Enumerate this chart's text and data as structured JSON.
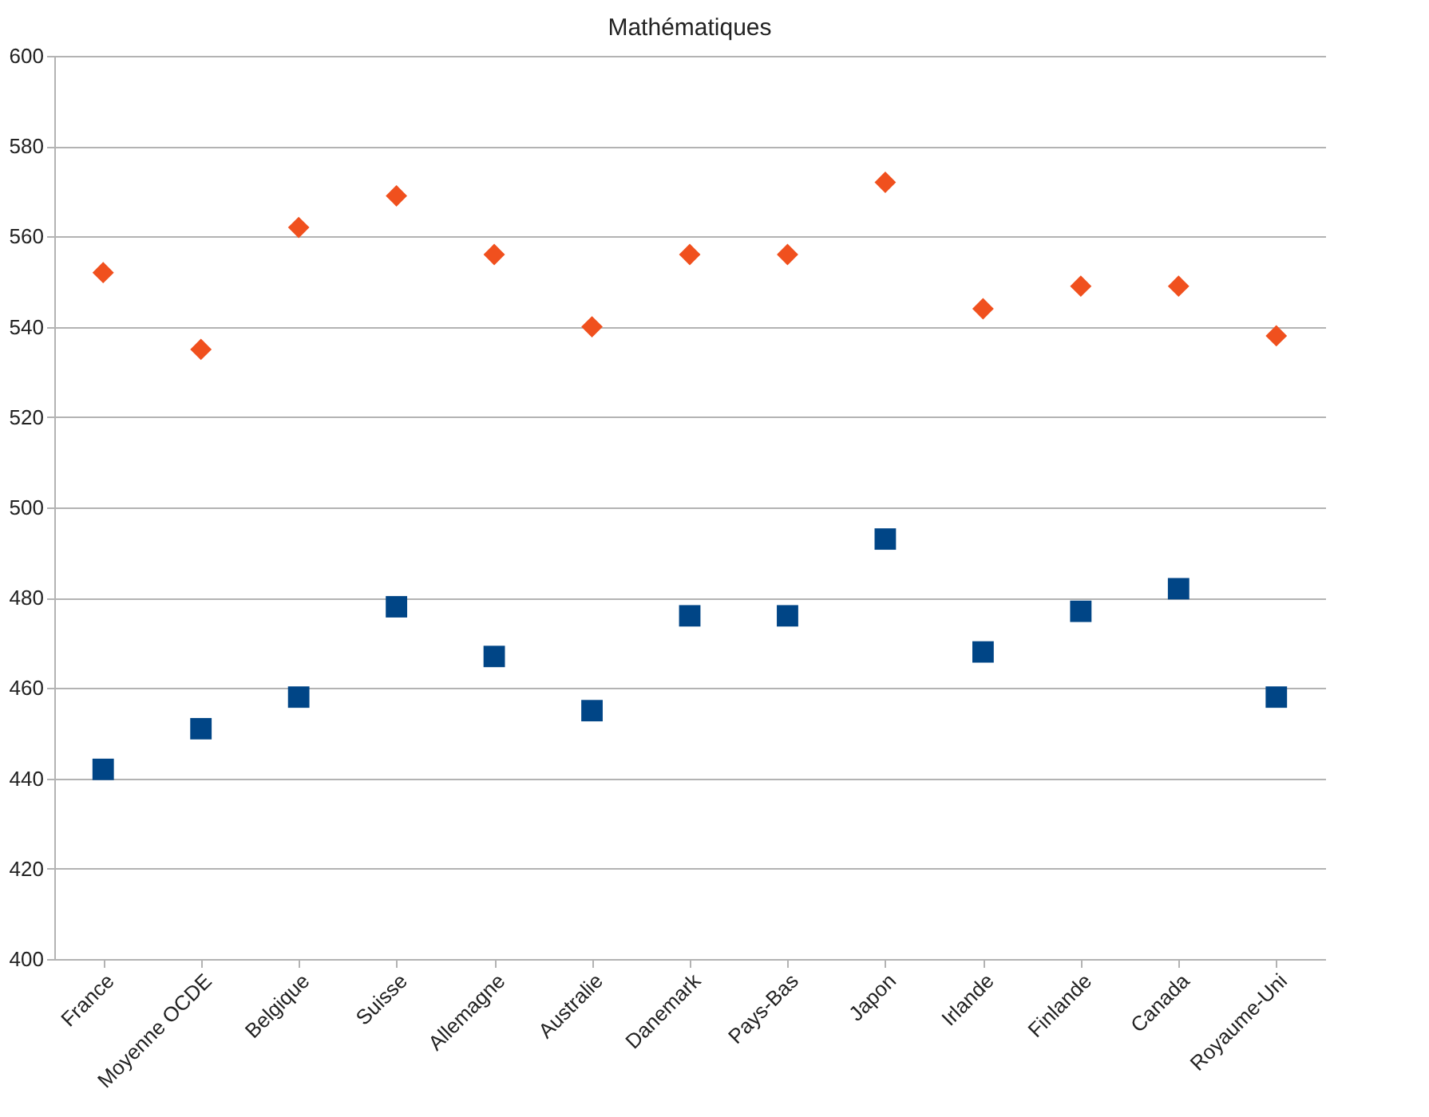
{
  "chart_data": {
    "type": "scatter",
    "title": "Mathématiques",
    "categories": [
      "France",
      "Moyenne OCDE",
      "Belgique",
      "Suisse",
      "Allemagne",
      "Australie",
      "Danemark",
      "Pays-Bas",
      "Japon",
      "Irlande",
      "Finlande",
      "Canada",
      "Royaume-Uni"
    ],
    "series": [
      {
        "color": "#f0501e",
        "marker": "diamond",
        "values": [
          552,
          535,
          562,
          569,
          556,
          540,
          556,
          556,
          572,
          544,
          549,
          549,
          538
        ]
      },
      {
        "color": "#004586",
        "marker": "square",
        "values": [
          442,
          451,
          458,
          478,
          467,
          455,
          476,
          476,
          493,
          468,
          477,
          482,
          458
        ]
      }
    ],
    "ylim": [
      400,
      600
    ],
    "yticks": [
      400,
      420,
      440,
      460,
      480,
      500,
      520,
      540,
      560,
      580,
      600
    ],
    "grid": "y"
  }
}
